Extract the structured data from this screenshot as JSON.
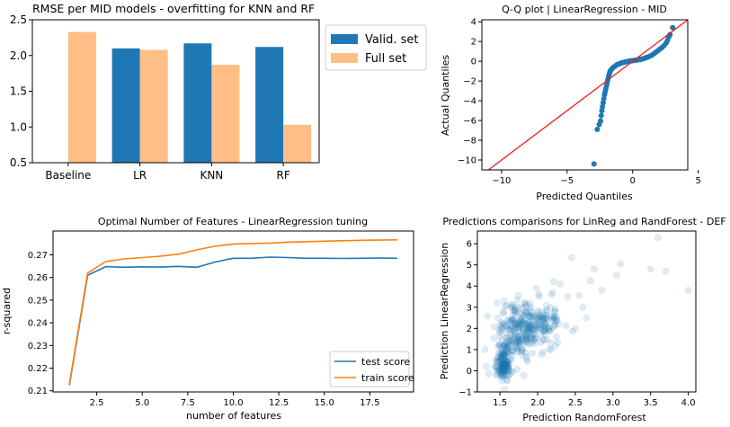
{
  "colors": {
    "blue": "#1f77b4",
    "orange": "#ffbe86",
    "orange_line": "#ff7f0e",
    "red": "#e8201f"
  },
  "chart_data": [
    {
      "id": "rmse",
      "type": "bar",
      "title": "RMSE per MID models - overfitting for KNN and RF",
      "categories": [
        "Baseline",
        "LR",
        "KNN",
        "RF"
      ],
      "series": [
        {
          "name": "Valid. set",
          "values": [
            null,
            2.1,
            2.17,
            2.12
          ]
        },
        {
          "name": "Full set",
          "values": [
            2.33,
            2.08,
            1.87,
            1.03
          ]
        }
      ],
      "ylim": [
        0.5,
        2.5
      ],
      "yticks": [
        "0.5",
        "1.0",
        "1.5",
        "2.0",
        "2.5"
      ],
      "legend": "outside-right"
    },
    {
      "id": "qq",
      "type": "scatter",
      "title": "Q-Q plot | LinearRegression - MID",
      "xlabel": "Predicted Quantiles",
      "ylabel": "Actual Quantiles",
      "xlim": [
        -11.5,
        4.2
      ],
      "ylim": [
        -11,
        4.2
      ],
      "xticks": [
        "−10",
        "−5",
        "0",
        "5"
      ],
      "yticks": [
        "−10",
        "−8",
        "−6",
        "−4",
        "−2",
        "0",
        "2",
        "4"
      ],
      "reference_line": [
        [
          -11.5,
          -11.5
        ],
        [
          4.2,
          4.2
        ]
      ],
      "points": [
        [
          -2.95,
          -10.4
        ],
        [
          -2.7,
          -6.9
        ],
        [
          -2.55,
          -6.4
        ],
        [
          -2.45,
          -6.05
        ],
        [
          -2.4,
          -5.5
        ],
        [
          -2.35,
          -5.0
        ],
        [
          -2.3,
          -4.6
        ],
        [
          -2.25,
          -4.2
        ],
        [
          -2.2,
          -3.8
        ],
        [
          -2.15,
          -3.4
        ],
        [
          -2.1,
          -3.1
        ],
        [
          -2.05,
          -2.8
        ],
        [
          -2.0,
          -2.5
        ],
        [
          -1.95,
          -2.2
        ],
        [
          -1.9,
          -1.9
        ],
        [
          -1.85,
          -1.6
        ],
        [
          -1.8,
          -1.35
        ],
        [
          -1.75,
          -1.15
        ],
        [
          -1.7,
          -0.95
        ],
        [
          -1.6,
          -0.8
        ],
        [
          -1.5,
          -0.65
        ],
        [
          -1.4,
          -0.55
        ],
        [
          -1.3,
          -0.45
        ],
        [
          -1.2,
          -0.35
        ],
        [
          -1.1,
          -0.3
        ],
        [
          -1.0,
          -0.25
        ],
        [
          -0.9,
          -0.2
        ],
        [
          -0.8,
          -0.15
        ],
        [
          -0.7,
          -0.12
        ],
        [
          -0.6,
          -0.08
        ],
        [
          -0.5,
          -0.05
        ],
        [
          -0.4,
          -0.02
        ],
        [
          -0.3,
          0.0
        ],
        [
          -0.2,
          0.02
        ],
        [
          -0.1,
          0.04
        ],
        [
          0.0,
          0.06
        ],
        [
          0.1,
          0.08
        ],
        [
          0.2,
          0.1
        ],
        [
          0.3,
          0.12
        ],
        [
          0.4,
          0.15
        ],
        [
          0.5,
          0.18
        ],
        [
          0.6,
          0.2
        ],
        [
          0.7,
          0.22
        ],
        [
          0.8,
          0.25
        ],
        [
          0.9,
          0.3
        ],
        [
          1.0,
          0.35
        ],
        [
          1.1,
          0.4
        ],
        [
          1.2,
          0.45
        ],
        [
          1.35,
          0.55
        ],
        [
          1.5,
          0.65
        ],
        [
          1.65,
          0.8
        ],
        [
          1.8,
          0.95
        ],
        [
          1.95,
          1.1
        ],
        [
          2.1,
          1.25
        ],
        [
          2.25,
          1.4
        ],
        [
          2.4,
          1.6
        ],
        [
          2.55,
          1.85
        ],
        [
          2.65,
          2.1
        ],
        [
          2.75,
          2.45
        ],
        [
          2.85,
          2.7
        ],
        [
          3.05,
          3.4
        ]
      ]
    },
    {
      "id": "features",
      "type": "line",
      "title": "Optimal Number of Features - LinearRegression tuning",
      "xlabel": "number of features",
      "ylabel": "r-squared",
      "xlim": [
        0.1,
        19.9
      ],
      "ylim": [
        0.2095,
        0.2805
      ],
      "xticks": [
        2.5,
        5.0,
        7.5,
        10.0,
        12.5,
        15.0,
        17.5
      ],
      "yticks": [
        0.21,
        0.22,
        0.23,
        0.24,
        0.25,
        0.26,
        0.27
      ],
      "x": [
        1,
        2,
        3,
        4,
        5,
        6,
        7,
        8,
        9,
        10,
        11,
        12,
        13,
        14,
        15,
        16,
        17,
        18,
        19
      ],
      "series": [
        {
          "name": "test score",
          "values": [
            0.2125,
            0.261,
            0.2648,
            0.2645,
            0.2647,
            0.2646,
            0.2649,
            0.2645,
            0.2668,
            0.2685,
            0.2685,
            0.269,
            0.2688,
            0.2685,
            0.2685,
            0.2684,
            0.2685,
            0.2686,
            0.2685
          ]
        },
        {
          "name": "train score",
          "values": [
            0.213,
            0.262,
            0.267,
            0.2682,
            0.2688,
            0.2694,
            0.2703,
            0.2722,
            0.2738,
            0.2748,
            0.275,
            0.2752,
            0.2756,
            0.2758,
            0.276,
            0.2762,
            0.2764,
            0.2765,
            0.2766
          ]
        }
      ],
      "legend": "lower-right"
    },
    {
      "id": "pred",
      "type": "scatter",
      "title": "Predictions comparisons for LinReg and RandForest - DEF",
      "xlabel": "Prediction RandomForest",
      "ylabel": "Prediction LinearRegression",
      "xlim": [
        1.2,
        4.1
      ],
      "ylim": [
        -1.0,
        6.6
      ],
      "xticks": [
        "1.5",
        "2.0",
        "2.5",
        "3.0",
        "3.5",
        "4.0"
      ],
      "yticks": [
        "−1",
        "0",
        "1",
        "2",
        "3",
        "4",
        "5",
        "6"
      ],
      "clusters": [
        {
          "cx": 1.55,
          "cy": 0.3,
          "sx": 0.07,
          "sy": 0.6,
          "n": 150
        },
        {
          "cx": 1.75,
          "cy": 1.8,
          "sx": 0.22,
          "sy": 0.9,
          "n": 210
        },
        {
          "cx": 2.0,
          "cy": 2.4,
          "sx": 0.25,
          "sy": 0.8,
          "n": 120
        }
      ],
      "points": [
        [
          3.6,
          6.3
        ],
        [
          3.1,
          5.05
        ],
        [
          3.7,
          4.7
        ],
        [
          3.5,
          4.8
        ],
        [
          4.0,
          3.8
        ],
        [
          3.05,
          4.5
        ],
        [
          2.75,
          4.8
        ],
        [
          2.45,
          5.35
        ],
        [
          2.7,
          4.25
        ],
        [
          2.6,
          3.0
        ],
        [
          2.55,
          3.55
        ],
        [
          2.85,
          3.8
        ],
        [
          1.3,
          1.0
        ],
        [
          1.32,
          0.2
        ],
        [
          1.35,
          -0.15
        ],
        [
          2.3,
          4.1
        ],
        [
          2.4,
          3.5
        ],
        [
          2.2,
          3.7
        ],
        [
          2.65,
          2.5
        ],
        [
          2.5,
          2.0
        ]
      ]
    }
  ]
}
